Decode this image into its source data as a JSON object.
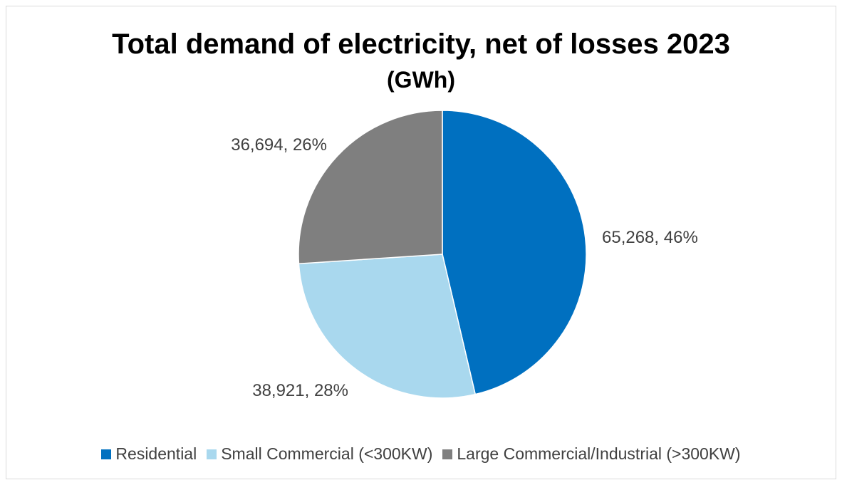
{
  "chart_data": {
    "type": "pie",
    "title": "Total demand of electricity, net of losses 2023",
    "subtitle": "(GWh)",
    "categories": [
      "Residential",
      "Small Commercial (<300KW)",
      "Large Commercial/Industrial (>300KW)"
    ],
    "values": [
      65268,
      38921,
      36694
    ],
    "percentages": [
      46,
      28,
      26
    ],
    "data_labels": [
      "65,268, 46%",
      "38,921, 28%",
      "36,694, 26%"
    ],
    "colors": [
      "#0070c0",
      "#a9d8ee",
      "#7f7f7f"
    ],
    "legend_position": "bottom",
    "start_angle_deg": 0,
    "direction": "clockwise"
  },
  "legend": {
    "items": [
      {
        "label": "Residential",
        "color": "#0070c0",
        "swatch_icon": "square-swatch-icon"
      },
      {
        "label": "Small Commercial (<300KW)",
        "color": "#a9d8ee",
        "swatch_icon": "square-swatch-icon"
      },
      {
        "label": "Large Commercial/Industrial (>300KW)",
        "color": "#7f7f7f",
        "swatch_icon": "square-swatch-icon"
      }
    ]
  }
}
